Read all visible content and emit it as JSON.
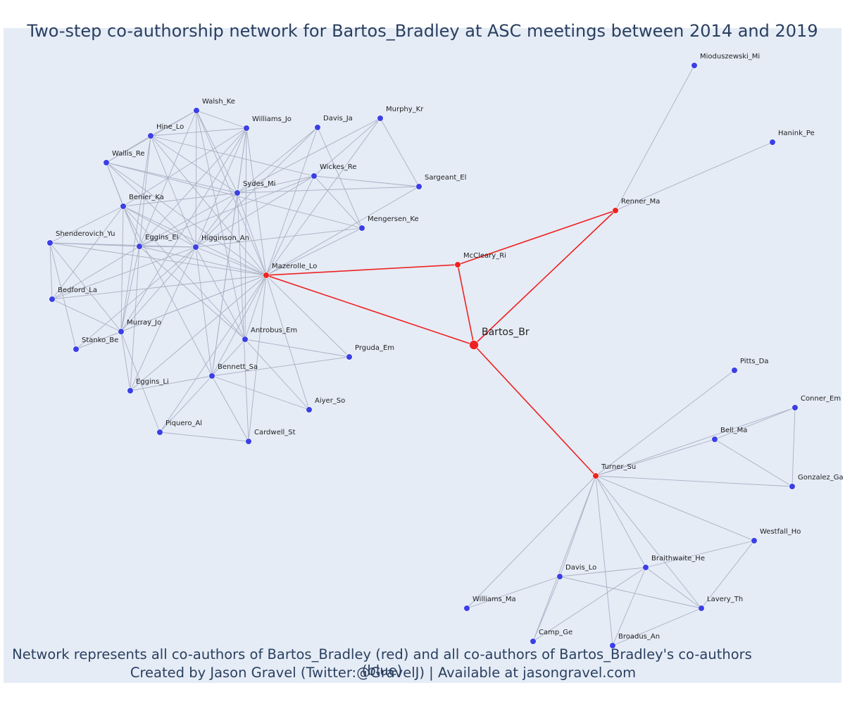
{
  "title": "Two-step co-authorship network for Bartos_Bradley at ASC meetings between 2014 and 2019",
  "caption_line1": "Network represents all co-authors of Bartos_Bradley (red) and all co-authors of Bartos_Bradley's co-authors (blue)",
  "caption_line2": "Created by Jason Gravel (Twitter:@GravelJ) | Available at jasongravel.com",
  "colors": {
    "red": "#ee2222",
    "blue": "#3b3fe6",
    "edge": "#aab0c4",
    "red_edge": "#ee2222",
    "bg": "#e5ecf6"
  },
  "nodes": [
    {
      "id": "Bartos_Br",
      "type": "ego"
    },
    {
      "id": "McCleary_Ri",
      "type": "red"
    },
    {
      "id": "Renner_Ma",
      "type": "red"
    },
    {
      "id": "Mazerolle_Lo",
      "type": "red"
    },
    {
      "id": "Turner_Su",
      "type": "red"
    },
    {
      "id": "Mioduszewski_Mi",
      "type": "blue"
    },
    {
      "id": "Hanink_Pe",
      "type": "blue"
    },
    {
      "id": "Walsh_Ke",
      "type": "blue"
    },
    {
      "id": "Williams_Jo",
      "type": "blue"
    },
    {
      "id": "Hine_Lo",
      "type": "blue"
    },
    {
      "id": "Davis_Ja",
      "type": "blue"
    },
    {
      "id": "Murphy_Kr",
      "type": "blue"
    },
    {
      "id": "Wallis_Re",
      "type": "blue"
    },
    {
      "id": "Wickes_Re",
      "type": "blue"
    },
    {
      "id": "Sargeant_El",
      "type": "blue"
    },
    {
      "id": "Sydes_Mi",
      "type": "blue"
    },
    {
      "id": "Benier_Ka",
      "type": "blue"
    },
    {
      "id": "Mengersen_Ke",
      "type": "blue"
    },
    {
      "id": "Shenderovich_Yu",
      "type": "blue"
    },
    {
      "id": "Eggins_El",
      "type": "blue"
    },
    {
      "id": "Higginson_An",
      "type": "blue"
    },
    {
      "id": "Bedford_La",
      "type": "blue"
    },
    {
      "id": "Murray_Jo",
      "type": "blue"
    },
    {
      "id": "Stanko_Be",
      "type": "blue"
    },
    {
      "id": "Antrobus_Em",
      "type": "blue"
    },
    {
      "id": "Prguda_Em",
      "type": "blue"
    },
    {
      "id": "Bennett_Sa",
      "type": "blue"
    },
    {
      "id": "Eggins_Li",
      "type": "blue"
    },
    {
      "id": "Aiyer_So",
      "type": "blue"
    },
    {
      "id": "Piquero_Al",
      "type": "blue"
    },
    {
      "id": "Cardwell_St",
      "type": "blue"
    },
    {
      "id": "Pitts_Da",
      "type": "blue"
    },
    {
      "id": "Conner_Em",
      "type": "blue"
    },
    {
      "id": "Bell_Ma",
      "type": "blue"
    },
    {
      "id": "Gonzalez_Ga",
      "type": "blue"
    },
    {
      "id": "Westfall_Ho",
      "type": "blue"
    },
    {
      "id": "Braithwaite_He",
      "type": "blue"
    },
    {
      "id": "Davis_Lo",
      "type": "blue"
    },
    {
      "id": "Williams_Ma",
      "type": "blue"
    },
    {
      "id": "Lavery_Th",
      "type": "blue"
    },
    {
      "id": "Camp_Ge",
      "type": "blue"
    },
    {
      "id": "Broadus_An",
      "type": "blue"
    }
  ]
}
